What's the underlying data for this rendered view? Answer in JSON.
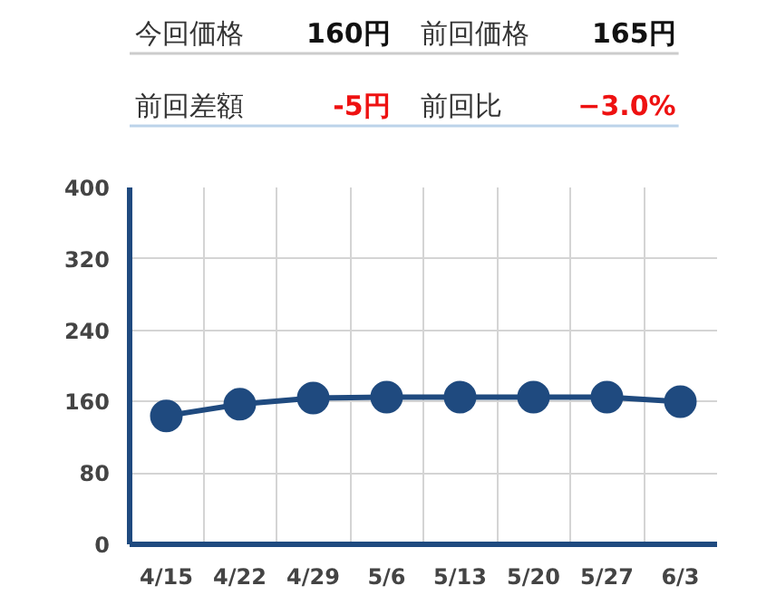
{
  "chart_data": [
    {
      "type": "other",
      "annotations": [
        "今回価格",
        "160円",
        "前回価格",
        "165円",
        "前回差額",
        "-5円",
        "前回比",
        "−3.0%"
      ],
      "colors": [
        "#333333",
        "#111111",
        "#333333",
        "#111111",
        "#333333",
        "#ee1111",
        "#333333",
        "#ee1111"
      ]
    },
    {
      "type": "line",
      "categories": [
        "4/15",
        "4/22",
        "4/29",
        "5/6",
        "5/13",
        "5/20",
        "5/27",
        "6/3"
      ],
      "values": [
        144,
        157,
        164,
        165,
        165,
        165,
        165,
        160
      ],
      "color": "#1f4a7f",
      "ylim": [
        0,
        400
      ],
      "yticks": [
        0,
        80,
        160,
        240,
        320,
        400
      ],
      "grid": true,
      "marker": "circle"
    }
  ]
}
